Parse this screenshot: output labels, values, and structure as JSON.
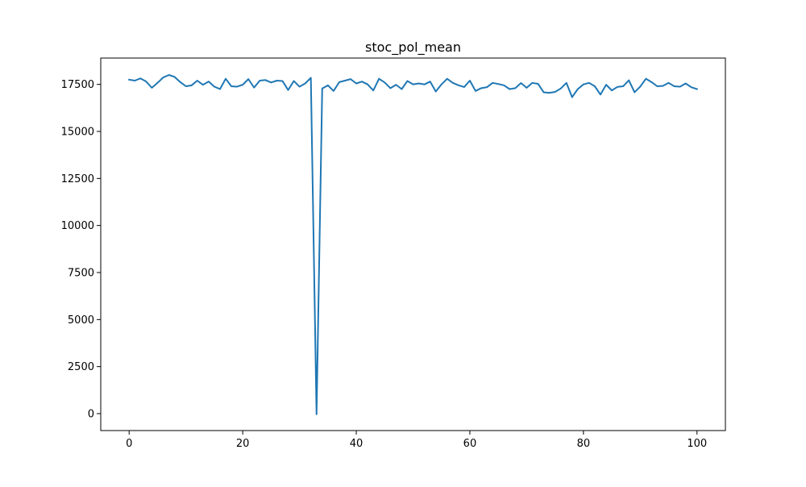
{
  "colors": {
    "series": "#1f77b4",
    "axes": "#000000",
    "background": "#ffffff"
  },
  "chart_data": {
    "type": "line",
    "title": "stoc_pol_mean",
    "xlabel": "",
    "ylabel": "",
    "xlim": [
      -5,
      105
    ],
    "ylim": [
      -900,
      18900
    ],
    "xticks": [
      0,
      20,
      40,
      60,
      80,
      100
    ],
    "yticks": [
      0,
      2500,
      5000,
      7500,
      10000,
      12500,
      15000,
      17500
    ],
    "grid": false,
    "legend": "none",
    "series": [
      {
        "x": [
          0,
          1,
          2,
          3,
          4,
          5,
          6,
          7,
          8,
          9,
          10,
          11,
          12,
          13,
          14,
          15,
          16,
          17,
          18,
          19,
          20,
          21,
          22,
          23,
          24,
          25,
          26,
          27,
          28,
          29,
          30,
          31,
          32,
          33,
          34,
          35,
          36,
          37,
          38,
          39,
          40,
          41,
          42,
          43,
          44,
          45,
          46,
          47,
          48,
          49,
          50,
          51,
          52,
          53,
          54,
          55,
          56,
          57,
          58,
          59,
          60,
          61,
          62,
          63,
          64,
          65,
          66,
          67,
          68,
          69,
          70,
          71,
          72,
          73,
          74,
          75,
          76,
          77,
          78,
          79,
          80,
          81,
          82,
          83,
          84,
          85,
          86,
          87,
          88,
          89,
          90,
          91,
          92,
          93,
          94,
          95,
          96,
          97,
          98,
          99,
          100
        ],
        "values": [
          17750,
          17700,
          17820,
          17650,
          17320,
          17580,
          17870,
          18000,
          17900,
          17620,
          17400,
          17450,
          17700,
          17480,
          17650,
          17380,
          17250,
          17800,
          17400,
          17380,
          17480,
          17780,
          17330,
          17700,
          17730,
          17600,
          17700,
          17680,
          17200,
          17680,
          17380,
          17550,
          17850,
          -30,
          17280,
          17450,
          17150,
          17620,
          17700,
          17780,
          17550,
          17650,
          17500,
          17180,
          17800,
          17600,
          17300,
          17480,
          17250,
          17680,
          17500,
          17550,
          17500,
          17650,
          17120,
          17500,
          17800,
          17580,
          17450,
          17360,
          17700,
          17150,
          17300,
          17350,
          17580,
          17520,
          17450,
          17250,
          17300,
          17570,
          17320,
          17580,
          17530,
          17080,
          17050,
          17100,
          17280,
          17580,
          16820,
          17250,
          17500,
          17580,
          17400,
          16960,
          17480,
          17180,
          17370,
          17400,
          17720,
          17080,
          17380,
          17800,
          17620,
          17400,
          17420,
          17580,
          17400,
          17380,
          17550,
          17350,
          17250
        ]
      }
    ]
  }
}
